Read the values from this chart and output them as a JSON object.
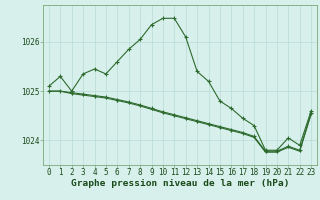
{
  "title": "Graphe pression niveau de la mer (hPa)",
  "xlabel_hours": [
    0,
    1,
    2,
    3,
    4,
    5,
    6,
    7,
    8,
    9,
    10,
    11,
    12,
    13,
    14,
    15,
    16,
    17,
    18,
    19,
    20,
    21,
    22,
    23
  ],
  "series1": [
    1025.1,
    1025.3,
    1025.0,
    1025.35,
    1025.45,
    1025.35,
    1025.6,
    1025.85,
    1026.05,
    1026.35,
    1026.48,
    1026.48,
    1026.1,
    1025.4,
    1025.2,
    1024.8,
    1024.65,
    1024.45,
    1024.3,
    1023.8,
    1023.8,
    1024.05,
    1023.9,
    1024.6
  ],
  "series2": [
    1025.0,
    1025.0,
    1024.97,
    1024.94,
    1024.91,
    1024.88,
    1024.83,
    1024.78,
    1024.72,
    1024.65,
    1024.58,
    1024.52,
    1024.46,
    1024.4,
    1024.34,
    1024.28,
    1024.22,
    1024.16,
    1024.08,
    1023.78,
    1023.78,
    1023.88,
    1023.8,
    1024.55
  ],
  "series3": [
    1025.0,
    1025.0,
    1024.95,
    1024.92,
    1024.89,
    1024.86,
    1024.81,
    1024.76,
    1024.7,
    1024.63,
    1024.56,
    1024.5,
    1024.44,
    1024.38,
    1024.32,
    1024.26,
    1024.2,
    1024.14,
    1024.06,
    1023.76,
    1023.76,
    1023.86,
    1023.78,
    1024.53
  ],
  "ylim_min": 1023.5,
  "ylim_max": 1026.75,
  "yticks": [
    1024,
    1025,
    1026
  ],
  "line_color": "#2d6a2d",
  "bg_color": "#d8f0ec",
  "grid_color": "#b8dcd6",
  "title_color": "#1a4a1a",
  "title_fontsize": 6.8,
  "tick_fontsize": 5.5
}
